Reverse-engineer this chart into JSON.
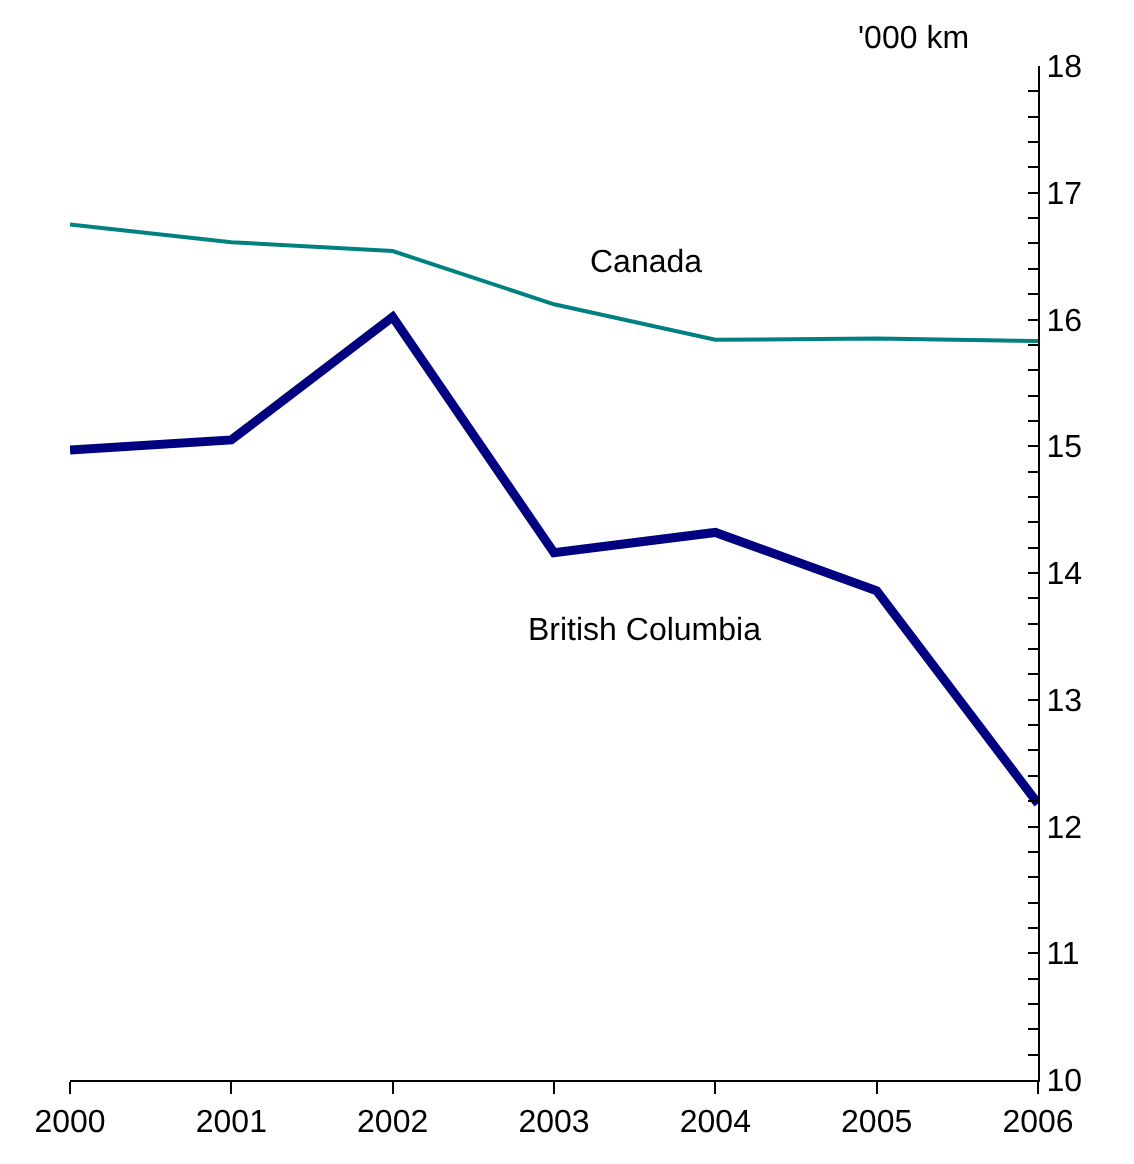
{
  "chart_data": {
    "type": "line",
    "ylabel": "'000 km",
    "x": [
      2000,
      2001,
      2002,
      2003,
      2004,
      2005,
      2006
    ],
    "series": [
      {
        "name": "Canada",
        "color": "#008080",
        "values": [
          16.75,
          16.61,
          16.54,
          16.12,
          15.84,
          15.85,
          15.83
        ]
      },
      {
        "name": "British Columbia",
        "color": "#000080",
        "values": [
          14.97,
          15.05,
          16.02,
          14.16,
          14.32,
          13.86,
          12.18
        ]
      }
    ],
    "xlim": [
      2000,
      2006
    ],
    "xticks": [
      2000,
      2001,
      2002,
      2003,
      2004,
      2005,
      2006
    ],
    "ylim": [
      10,
      18
    ],
    "yticks": [
      10,
      {
        "value": 10.2,
        "label": null
      },
      {
        "value": 10.4,
        "label": null
      },
      {
        "value": 10.6,
        "label": null
      },
      {
        "value": 10.8,
        "label": null
      },
      11,
      {
        "value": 11.2,
        "label": null
      },
      {
        "value": 11.4,
        "label": null
      },
      {
        "value": 11.6,
        "label": null
      },
      {
        "value": 11.8,
        "label": null
      },
      12,
      {
        "value": 12.2,
        "label": null
      },
      {
        "value": 12.4,
        "label": null
      },
      {
        "value": 12.6,
        "label": null
      },
      {
        "value": 12.8,
        "label": null
      },
      13,
      {
        "value": 13.2,
        "label": null
      },
      {
        "value": 13.4,
        "label": null
      },
      {
        "value": 13.6,
        "label": null
      },
      {
        "value": 13.8,
        "label": null
      },
      14,
      {
        "value": 14.2,
        "label": null
      },
      {
        "value": 14.4,
        "label": null
      },
      {
        "value": 14.6,
        "label": null
      },
      {
        "value": 14.8,
        "label": null
      },
      15,
      {
        "value": 15.2,
        "label": null
      },
      {
        "value": 15.4,
        "label": null
      },
      {
        "value": 15.6,
        "label": null
      },
      {
        "value": 15.8,
        "label": null
      },
      16,
      {
        "value": 16.2,
        "label": null
      },
      {
        "value": 16.4,
        "label": null
      },
      {
        "value": 16.6,
        "label": null
      },
      {
        "value": 16.8,
        "label": null
      },
      17,
      {
        "value": 17.2,
        "label": null
      },
      {
        "value": 17.4,
        "label": null
      },
      {
        "value": 17.6,
        "label": null
      },
      {
        "value": 17.8,
        "label": null
      },
      18
    ],
    "legend": false,
    "marker": "none",
    "line_style": "solid"
  }
}
